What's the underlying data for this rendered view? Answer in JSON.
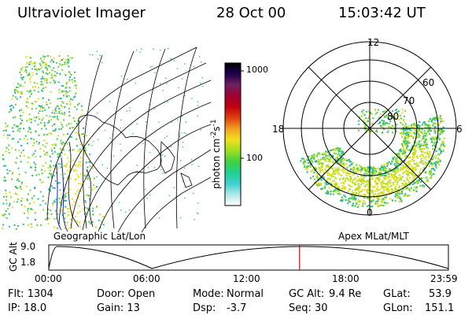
{
  "header": {
    "instrument": "Ultraviolet Imager",
    "date": "28 Oct 00",
    "time": "15:03:42 UT"
  },
  "colorbar": {
    "label_prefix": "photon cm",
    "label_exp1": "-2",
    "label_mid": "s",
    "label_exp2": "-1",
    "ticks": [
      "1000",
      "100"
    ],
    "colors": [
      "#ffffff",
      "#b0e8e8",
      "#40d0d0",
      "#20d090",
      "#40d040",
      "#a0e020",
      "#f0e020",
      "#f0a020",
      "#e04010",
      "#c00010",
      "#a00030",
      "#702060",
      "#200050",
      "#000000"
    ]
  },
  "geo": {
    "label": "Geographic Lat/Lon"
  },
  "polar": {
    "label": "Apex MLat/MLT",
    "mlt": {
      "top": "12",
      "left": "18",
      "right": "6",
      "bottom": "0"
    },
    "lat": [
      "60",
      "70",
      "80"
    ]
  },
  "altplot": {
    "ylabel": "GC Alt",
    "yticks": [
      "9.0",
      "1.8"
    ],
    "xticks": [
      "00:00",
      "06:00",
      "12:00",
      "18:00",
      "23:59"
    ],
    "current_hour": 15.06,
    "orbit_curve": [
      [
        0,
        1.8
      ],
      [
        0.5,
        9.0
      ],
      [
        6.2,
        1.8
      ],
      [
        15.3,
        9.0
      ],
      [
        24,
        1.8
      ]
    ]
  },
  "status": {
    "flt": "Flt: 1304",
    "ip": "IP: 18.0",
    "door": "Door: Open",
    "gain": "Gain: 13",
    "mode_label": "Mode:",
    "mode": "Normal",
    "dsp_label": "Dsp:",
    "dsp": "-3.7",
    "gcalt_label": "GC Alt:",
    "gcalt": "9.4 Re",
    "seq": "Seq: 30",
    "glat_label": "GLat:",
    "glat": "53.9",
    "glon_label": "GLon:",
    "glon": "151.1"
  }
}
